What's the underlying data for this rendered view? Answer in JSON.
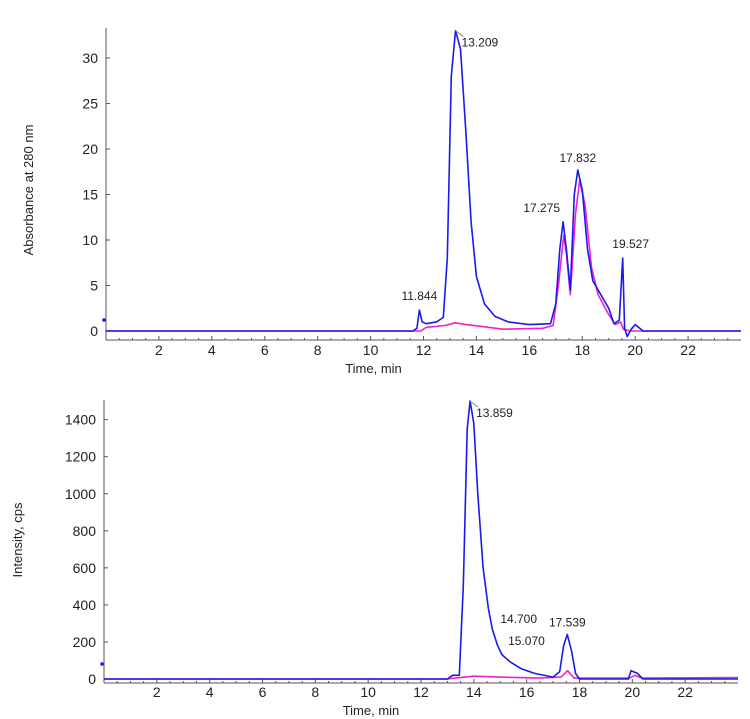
{
  "chart_data": [
    {
      "type": "line",
      "ylabel": "Absorbance at 280 nm",
      "xlabel": "Time, min",
      "xlim": [
        0,
        24
      ],
      "ylim": [
        -1.5,
        33
      ],
      "xticks": [
        2,
        4,
        6,
        8,
        10,
        12,
        14,
        16,
        18,
        20,
        22
      ],
      "yticks": [
        0,
        5,
        10,
        15,
        20,
        25,
        30
      ],
      "annotations": [
        {
          "x": 11.844,
          "y": 2.3,
          "text": "11.844"
        },
        {
          "x": 13.209,
          "y": 33,
          "text": "13.209"
        },
        {
          "x": 17.275,
          "y": 12,
          "text": "17.275"
        },
        {
          "x": 17.832,
          "y": 17.7,
          "text": "17.832"
        },
        {
          "x": 19.527,
          "y": 8,
          "text": "19.527"
        }
      ],
      "series": [
        {
          "name": "blue",
          "color": "#1a1aee",
          "points": [
            [
              0,
              0
            ],
            [
              11.6,
              0
            ],
            [
              11.75,
              0.3
            ],
            [
              11.844,
              2.3
            ],
            [
              11.95,
              1.0
            ],
            [
              12.1,
              0.8
            ],
            [
              12.5,
              1.0
            ],
            [
              12.75,
              1.5
            ],
            [
              12.9,
              8
            ],
            [
              13.05,
              28
            ],
            [
              13.209,
              33
            ],
            [
              13.4,
              31
            ],
            [
              13.6,
              22
            ],
            [
              13.8,
              12
            ],
            [
              14.0,
              6
            ],
            [
              14.3,
              3
            ],
            [
              14.7,
              1.6
            ],
            [
              15.2,
              1.0
            ],
            [
              16.0,
              0.7
            ],
            [
              16.8,
              0.8
            ],
            [
              17.0,
              3
            ],
            [
              17.15,
              9
            ],
            [
              17.275,
              12
            ],
            [
              17.4,
              9
            ],
            [
              17.55,
              4.5
            ],
            [
              17.7,
              15
            ],
            [
              17.832,
              17.7
            ],
            [
              18.0,
              15.5
            ],
            [
              18.2,
              9
            ],
            [
              18.4,
              5.5
            ],
            [
              18.7,
              4
            ],
            [
              19.0,
              2.5
            ],
            [
              19.2,
              0.8
            ],
            [
              19.4,
              1.2
            ],
            [
              19.527,
              8
            ],
            [
              19.6,
              0.3
            ],
            [
              19.7,
              -0.6
            ],
            [
              19.85,
              0.2
            ],
            [
              20.0,
              0.7
            ],
            [
              20.3,
              0
            ],
            [
              24,
              0
            ]
          ]
        },
        {
          "name": "magenta",
          "color": "#ee22cc",
          "points": [
            [
              0,
              0
            ],
            [
              11.9,
              0
            ],
            [
              12.1,
              0.4
            ],
            [
              12.8,
              0.6
            ],
            [
              13.2,
              0.9
            ],
            [
              13.6,
              0.7
            ],
            [
              14.2,
              0.5
            ],
            [
              15.0,
              0.2
            ],
            [
              16.5,
              0.3
            ],
            [
              16.9,
              0.6
            ],
            [
              17.1,
              5
            ],
            [
              17.3,
              10.5
            ],
            [
              17.4,
              8.5
            ],
            [
              17.55,
              4
            ],
            [
              17.75,
              13
            ],
            [
              17.9,
              16.5
            ],
            [
              18.1,
              14
            ],
            [
              18.35,
              7
            ],
            [
              18.6,
              4
            ],
            [
              19.0,
              1.8
            ],
            [
              19.25,
              0.7
            ],
            [
              19.45,
              1.0
            ],
            [
              19.55,
              0.2
            ],
            [
              19.8,
              0
            ],
            [
              24,
              0
            ]
          ]
        }
      ]
    },
    {
      "type": "line",
      "ylabel": "Intensity, cps",
      "xlabel": "Time, min",
      "xlim": [
        0,
        24
      ],
      "ylim": [
        -20,
        1520
      ],
      "xticks": [
        2,
        4,
        6,
        8,
        10,
        12,
        14,
        16,
        18,
        20,
        22
      ],
      "yticks": [
        0,
        200,
        400,
        600,
        800,
        1000,
        1200,
        1400
      ],
      "annotations": [
        {
          "x": 13.859,
          "y": 1500,
          "text": "13.859"
        },
        {
          "x": 14.7,
          "y": 270,
          "text": "14.700"
        },
        {
          "x": 15.07,
          "y": 130,
          "text": "15.070"
        },
        {
          "x": 17.539,
          "y": 240,
          "text": "17.539"
        }
      ],
      "series": [
        {
          "name": "blue",
          "color": "#1a1aee",
          "points": [
            [
              0,
              0
            ],
            [
              13.0,
              0
            ],
            [
              13.2,
              20
            ],
            [
              13.45,
              20
            ],
            [
              13.6,
              500
            ],
            [
              13.75,
              1350
            ],
            [
              13.859,
              1500
            ],
            [
              14.0,
              1380
            ],
            [
              14.15,
              1000
            ],
            [
              14.35,
              600
            ],
            [
              14.55,
              380
            ],
            [
              14.7,
              270
            ],
            [
              14.9,
              180
            ],
            [
              15.07,
              130
            ],
            [
              15.4,
              90
            ],
            [
              15.8,
              55
            ],
            [
              16.3,
              30
            ],
            [
              17.0,
              10
            ],
            [
              17.25,
              40
            ],
            [
              17.4,
              180
            ],
            [
              17.539,
              240
            ],
            [
              17.7,
              150
            ],
            [
              17.85,
              30
            ],
            [
              18.0,
              0
            ],
            [
              19.85,
              0
            ],
            [
              19.95,
              45
            ],
            [
              20.2,
              30
            ],
            [
              20.4,
              0
            ],
            [
              24,
              0
            ]
          ]
        },
        {
          "name": "magenta",
          "color": "#ee22cc",
          "points": [
            [
              0,
              0
            ],
            [
              13.0,
              0
            ],
            [
              13.3,
              5
            ],
            [
              14.0,
              15
            ],
            [
              15.0,
              10
            ],
            [
              16.5,
              5
            ],
            [
              17.3,
              10
            ],
            [
              17.55,
              45
            ],
            [
              17.8,
              5
            ],
            [
              19.9,
              5
            ],
            [
              20.1,
              20
            ],
            [
              20.35,
              5
            ],
            [
              24,
              8
            ]
          ]
        }
      ]
    }
  ]
}
